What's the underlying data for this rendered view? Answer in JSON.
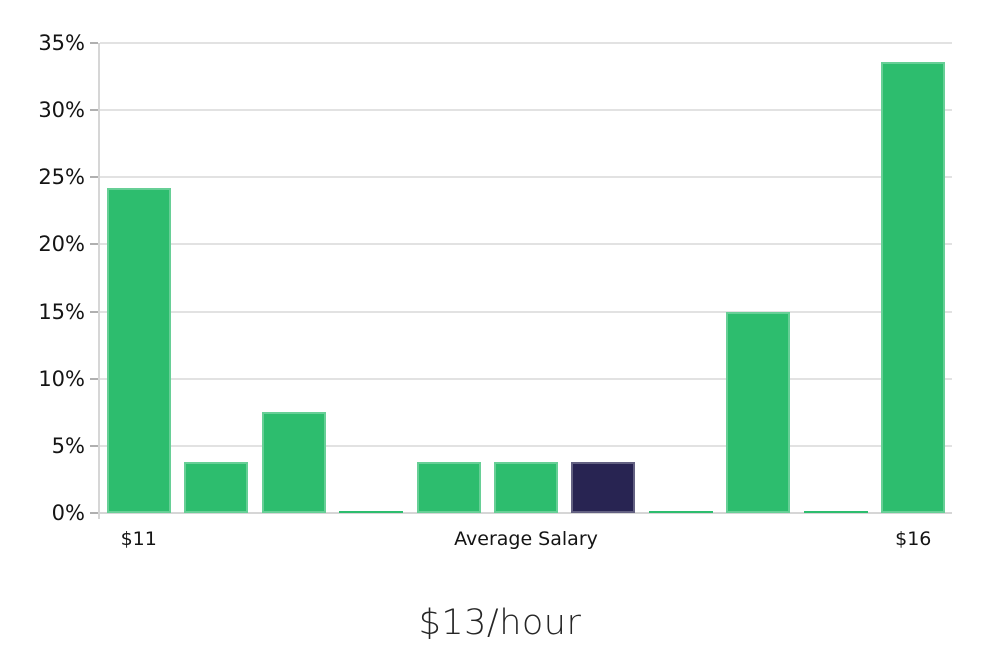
{
  "chart_data": {
    "type": "bar",
    "title": "$13/hour",
    "values": [
      24.2,
      3.8,
      7.5,
      0.1,
      3.8,
      3.8,
      3.8,
      0.1,
      15.0,
      0.1,
      33.6
    ],
    "highlight_index": 6,
    "x_ticks": [
      {
        "bar_index": 0,
        "label": "$11"
      },
      {
        "bar_index": 5,
        "label": "Average Salary"
      },
      {
        "bar_index": 10,
        "label": "$16"
      }
    ],
    "y_ticks": [
      "0%",
      "5%",
      "10%",
      "15%",
      "20%",
      "25%",
      "30%",
      "35%"
    ],
    "ylim": [
      0,
      35
    ],
    "grid": "horizontal",
    "legend": "none",
    "colors": {
      "bar": "#2dbd6e",
      "highlight_bar": "#282452",
      "gridline": "#e2e2e2",
      "axis": "#d6d6d6",
      "tick": "#b0b0b0",
      "label": "#141414",
      "title": "#262626"
    }
  }
}
